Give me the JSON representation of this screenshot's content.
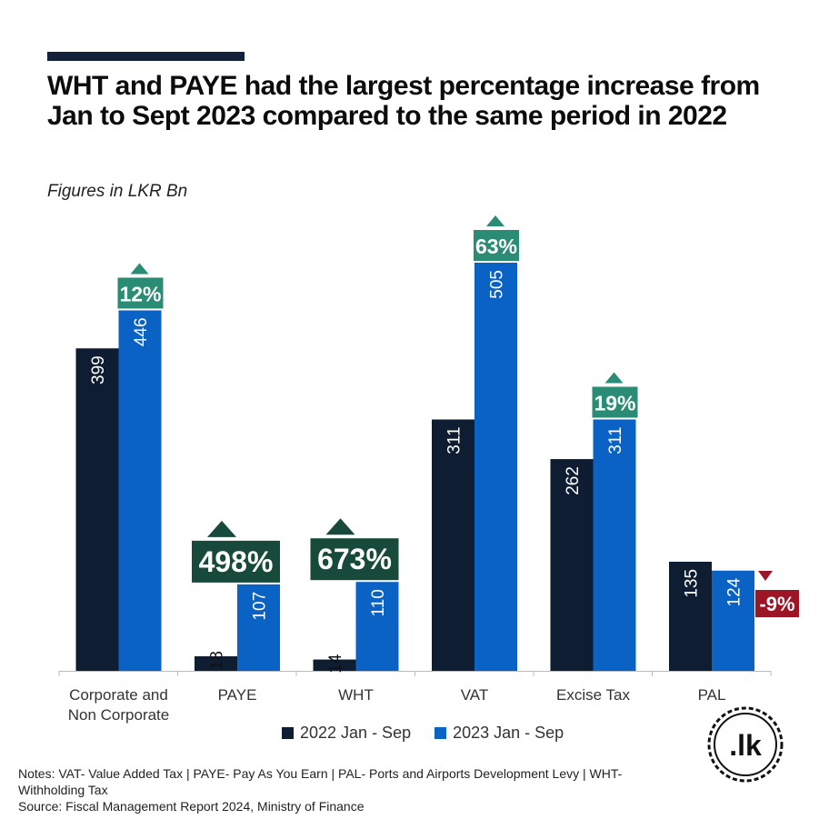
{
  "title": "WHT and PAYE had the largest percentage increase from Jan to Sept 2023 compared to the same period in 2022",
  "subtitle": "Figures in LKR Bn",
  "legend": {
    "series1": "2022 Jan - Sep",
    "series2": "2023 Jan - Sep"
  },
  "notes": "Notes: VAT- Value Added Tax | PAYE- Pay As You Earn | PAL- Ports and Airports Development Levy | WHT- Withholding Tax",
  "source": "Source: Fiscal Management Report 2024, Ministry of Finance",
  "logo_text": ".lk",
  "colors": {
    "series1": "#0f1d33",
    "series2": "#0a62c4",
    "increase_small": "#2a8c75",
    "increase_large": "#174a3a",
    "decrease": "#9c1526"
  },
  "chart_data": {
    "type": "bar",
    "categories": [
      "Corporate and Non Corporate",
      "PAYE",
      "WHT",
      "VAT",
      "Excise Tax",
      "PAL"
    ],
    "series": [
      {
        "name": "2022 Jan - Sep",
        "values": [
          399,
          18,
          14,
          311,
          262,
          135
        ]
      },
      {
        "name": "2023 Jan - Sep",
        "values": [
          446,
          107,
          110,
          505,
          311,
          124
        ]
      }
    ],
    "changes": [
      "12%",
      "498%",
      "673%",
      "63%",
      "19%",
      "-9%"
    ],
    "change_direction": [
      "up",
      "up",
      "up",
      "up",
      "up",
      "down"
    ],
    "ylim": [
      0,
      505
    ]
  }
}
